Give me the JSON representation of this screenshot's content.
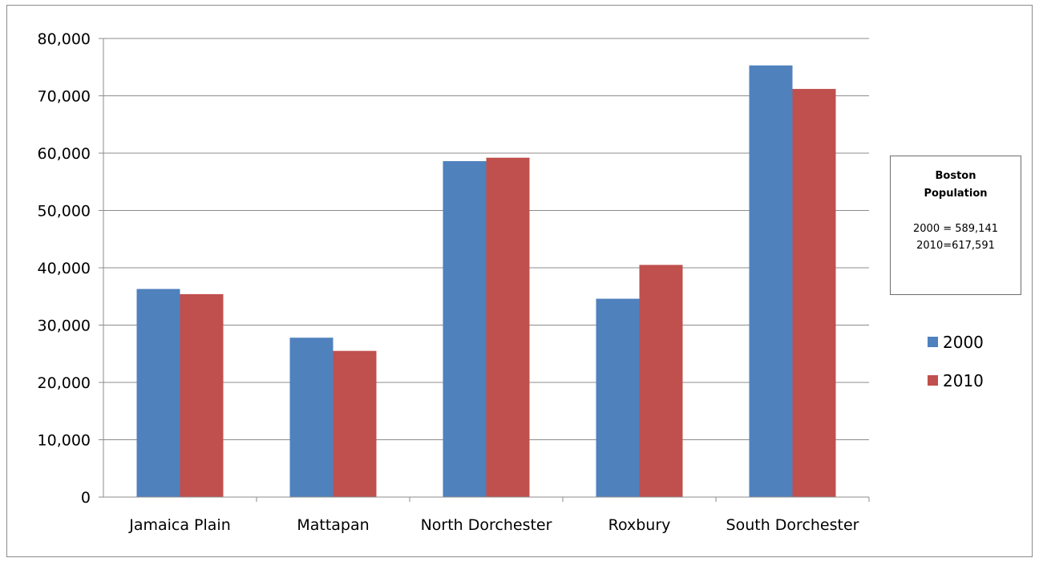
{
  "chart_data": {
    "type": "bar",
    "categories": [
      "Jamaica Plain",
      "Mattapan",
      "North Dorchester",
      "Roxbury",
      "South Dorchester"
    ],
    "series": [
      {
        "name": "2000",
        "color": "#4F81BD",
        "values": [
          36300,
          27800,
          58600,
          34600,
          75300
        ]
      },
      {
        "name": "2010",
        "color": "#C0504D",
        "values": [
          35400,
          25500,
          59200,
          40500,
          71200
        ]
      }
    ],
    "ylim": [
      0,
      80000
    ],
    "yticks": [
      "0",
      "10,000",
      "20,000",
      "30,000",
      "40,000",
      "50,000",
      "60,000",
      "70,000",
      "80,000"
    ],
    "ytick_values": [
      0,
      10000,
      20000,
      30000,
      40000,
      50000,
      60000,
      70000,
      80000
    ],
    "grid": true,
    "legend_position": "right",
    "annotation": {
      "title_line1": "Boston",
      "title_line2": "Population",
      "line1": "2000 = 589,141",
      "line2": "2010=617,591"
    }
  }
}
